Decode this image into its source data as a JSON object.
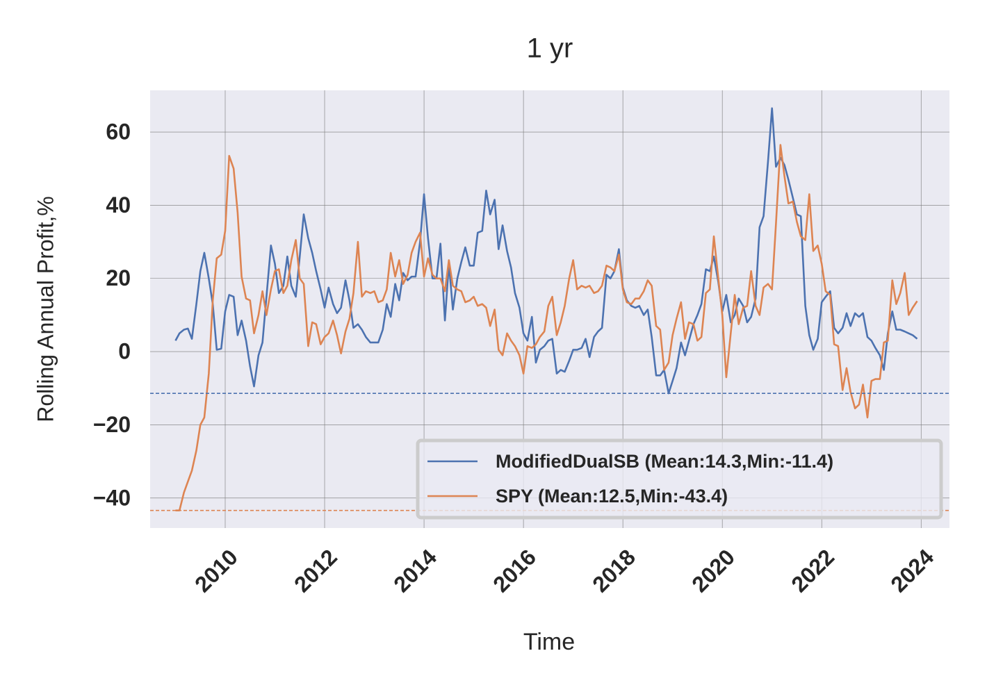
{
  "chart_data": {
    "type": "line",
    "title": "1 yr",
    "xlabel": "Time",
    "ylabel": "Rolling Annual Profit,%",
    "xlim": [
      2008.49,
      2024.57
    ],
    "ylim": [
      -48.2,
      71.4
    ],
    "xticks": [
      2010,
      2012,
      2014,
      2016,
      2018,
      2020,
      2022,
      2024
    ],
    "yticks": [
      {
        "value": -40,
        "label": "−40"
      },
      {
        "value": -20,
        "label": "−20"
      },
      0,
      20,
      40,
      60
    ],
    "grid": true,
    "legend": "lower right",
    "x": [
      2009,
      2009.08,
      2009.17,
      2009.25,
      2009.33,
      2009.42,
      2009.5,
      2009.58,
      2009.67,
      2009.75,
      2009.83,
      2009.92,
      2010,
      2010.08,
      2010.17,
      2010.25,
      2010.33,
      2010.42,
      2010.5,
      2010.58,
      2010.67,
      2010.75,
      2010.83,
      2010.92,
      2011,
      2011.08,
      2011.17,
      2011.25,
      2011.33,
      2011.42,
      2011.5,
      2011.58,
      2011.67,
      2011.75,
      2011.83,
      2011.92,
      2012,
      2012.08,
      2012.17,
      2012.25,
      2012.33,
      2012.42,
      2012.5,
      2012.58,
      2012.67,
      2012.75,
      2012.83,
      2012.92,
      2013,
      2013.08,
      2013.17,
      2013.25,
      2013.33,
      2013.42,
      2013.5,
      2013.58,
      2013.67,
      2013.75,
      2013.83,
      2013.92,
      2014,
      2014.08,
      2014.17,
      2014.25,
      2014.33,
      2014.42,
      2014.5,
      2014.58,
      2014.67,
      2014.75,
      2014.83,
      2014.92,
      2015,
      2015.08,
      2015.17,
      2015.25,
      2015.33,
      2015.42,
      2015.5,
      2015.58,
      2015.67,
      2015.75,
      2015.83,
      2015.92,
      2016,
      2016.08,
      2016.17,
      2016.25,
      2016.33,
      2016.42,
      2016.5,
      2016.58,
      2016.67,
      2016.75,
      2016.83,
      2016.92,
      2017,
      2017.08,
      2017.17,
      2017.25,
      2017.33,
      2017.42,
      2017.5,
      2017.58,
      2017.67,
      2017.75,
      2017.83,
      2017.92,
      2018,
      2018.08,
      2018.17,
      2018.25,
      2018.33,
      2018.42,
      2018.5,
      2018.58,
      2018.67,
      2018.75,
      2018.83,
      2018.92,
      2019,
      2019.08,
      2019.17,
      2019.25,
      2019.33,
      2019.42,
      2019.5,
      2019.58,
      2019.67,
      2019.75,
      2019.83,
      2019.92,
      2020,
      2020.08,
      2020.17,
      2020.25,
      2020.33,
      2020.42,
      2020.5,
      2020.58,
      2020.67,
      2020.75,
      2020.83,
      2020.92,
      2021,
      2021.08,
      2021.17,
      2021.25,
      2021.33,
      2021.42,
      2021.5,
      2021.58,
      2021.67,
      2021.75,
      2021.83,
      2021.92,
      2022,
      2022.08,
      2022.17,
      2022.25,
      2022.33,
      2022.42,
      2022.5,
      2022.58,
      2022.67,
      2022.75,
      2022.83,
      2022.92,
      2023,
      2023.08,
      2023.17,
      2023.25,
      2023.33,
      2023.42,
      2023.5,
      2023.58,
      2023.67,
      2023.75,
      2023.83,
      2023.92
    ],
    "series": [
      {
        "name": "ModifiedDualSB (Mean:14.3,Min:-11.4)",
        "color": "#4c72b0",
        "min": -11.4,
        "values": [
          3,
          5,
          6,
          6.3,
          3.5,
          13,
          22,
          27,
          20,
          13,
          0.5,
          0.8,
          11,
          15.5,
          15,
          4.5,
          8.5,
          3,
          -4,
          -9.5,
          -1,
          2.5,
          15,
          29,
          24,
          16,
          18,
          26,
          18,
          15,
          26,
          37.5,
          31,
          27,
          22,
          17,
          12,
          17.5,
          13,
          10.5,
          12,
          19.5,
          14,
          6.5,
          7.5,
          6,
          4,
          2.5,
          2.5,
          2.5,
          6,
          13,
          9.5,
          18.5,
          14,
          21.5,
          19.5,
          20.5,
          20.5,
          30,
          43,
          31,
          20,
          20,
          29.5,
          8.5,
          24,
          11.5,
          20,
          24.5,
          28.5,
          23.5,
          23.5,
          32.5,
          33,
          44,
          37.5,
          41.5,
          28,
          34.5,
          27.5,
          23,
          16,
          12,
          5,
          3,
          9.5,
          -3,
          0.5,
          1.5,
          3,
          3.5,
          -6,
          -5,
          -5.5,
          -2.5,
          0.5,
          0.5,
          1,
          3.5,
          -1.5,
          4,
          5.5,
          6.5,
          21,
          20,
          22,
          28,
          17.5,
          14,
          12.5,
          12,
          12.5,
          10,
          11.5,
          4,
          -6.5,
          -6.5,
          -5,
          -11.4,
          -8,
          -4.5,
          2.5,
          -1,
          3,
          7.5,
          10,
          13,
          22.5,
          22,
          26,
          19,
          11,
          15.5,
          8,
          10,
          14.5,
          12.5,
          8,
          9.5,
          14.5,
          34,
          37,
          52,
          66.5,
          50.5,
          53,
          51,
          47,
          42,
          37.5,
          37,
          12.5,
          4.5,
          0.5,
          3.5,
          13.5,
          15,
          16.5,
          6.5,
          5,
          6.5,
          10.5,
          7,
          10.5,
          9.5,
          10.5,
          4,
          3,
          1,
          -1,
          -5,
          5,
          11,
          6,
          6,
          5.5,
          5,
          4.5,
          3.5
        ]
      },
      {
        "name": "SPY (Mean:12.5,Min:-43.4)",
        "color": "#dd8452",
        "min": -43.4,
        "values": [
          -43.4,
          -43.4,
          -38.5,
          -35.5,
          -32.5,
          -27,
          -20,
          -18,
          -6,
          14,
          25.5,
          26.5,
          33,
          53.5,
          50,
          38,
          20.5,
          14.5,
          14,
          5,
          10,
          16.5,
          10,
          17,
          22,
          22.5,
          16,
          18,
          25,
          30.5,
          20,
          18.5,
          1.5,
          8,
          7.5,
          2,
          4,
          5,
          8.5,
          4.5,
          -0.5,
          5.5,
          9,
          16,
          30,
          15,
          16.5,
          16,
          16.5,
          13.5,
          14,
          17,
          27,
          20.5,
          25,
          18.5,
          21,
          27,
          30,
          32.5,
          20.5,
          25.5,
          21,
          20,
          20,
          16.5,
          25,
          18,
          17,
          16.5,
          13.5,
          14,
          15,
          12.5,
          13,
          12,
          7,
          11.5,
          0.5,
          -1,
          5,
          3,
          1.5,
          -1,
          -6,
          1.5,
          1,
          2,
          4,
          5.5,
          12.5,
          15,
          4.5,
          8,
          12.5,
          20,
          25,
          17,
          18,
          17.5,
          18,
          16,
          16.5,
          18,
          23.5,
          23,
          22,
          26.5,
          17,
          13.5,
          13,
          14.5,
          14.5,
          16.5,
          19.5,
          18,
          7,
          6,
          -5,
          -3,
          4.5,
          9,
          13.5,
          3.5,
          8,
          7.5,
          3,
          4,
          16,
          17,
          31.5,
          20,
          10,
          -7,
          5,
          15.5,
          7.5,
          12,
          12.5,
          22,
          12.5,
          10,
          17.5,
          18.5,
          17,
          35,
          56.5,
          48,
          40.5,
          41,
          35.5,
          31.5,
          30.5,
          43,
          27.5,
          29,
          24,
          16.5,
          15.5,
          2,
          1.5,
          -10.5,
          -4.5,
          -11,
          -15.5,
          -14.5,
          -9,
          -18,
          -8,
          -7.5,
          -7.5,
          2.5,
          3,
          19.5,
          13,
          16,
          21.5,
          10,
          12,
          13.8
        ]
      }
    ]
  }
}
